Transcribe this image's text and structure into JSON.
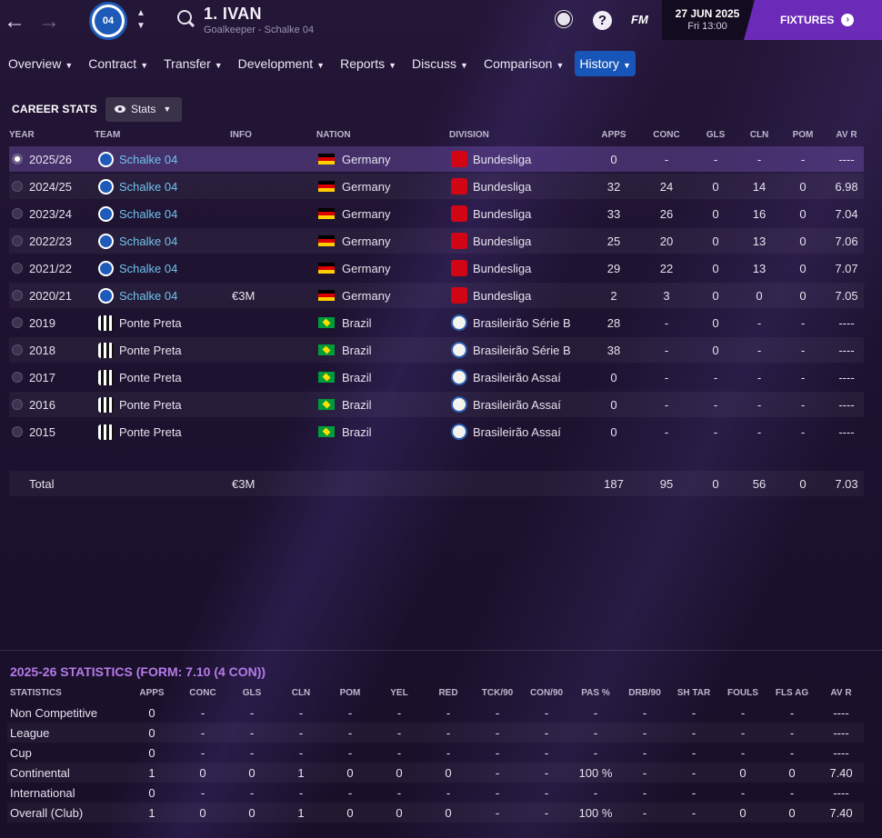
{
  "topbar": {
    "back_icon": "back-arrow-icon",
    "forward_icon": "forward-arrow-icon",
    "club_badge_text": "04",
    "player_name": "1. IVAN",
    "player_subtitle": "Goalkeeper - Schalke 04",
    "date": "27 JUN 2025",
    "day_time": "Fri 13:00",
    "fm_label": "FM",
    "help_label": "?",
    "fixtures_label": "FIXTURES"
  },
  "menu": [
    {
      "label": "Overview"
    },
    {
      "label": "Contract"
    },
    {
      "label": "Transfer"
    },
    {
      "label": "Development"
    },
    {
      "label": "Reports"
    },
    {
      "label": "Discuss"
    },
    {
      "label": "Comparison"
    },
    {
      "label": "History",
      "active": true
    }
  ],
  "career": {
    "title": "CAREER STATS",
    "view_button": "Stats",
    "headers": {
      "year": "YEAR",
      "team": "TEAM",
      "info": "INFO",
      "nation": "NATION",
      "division": "DIVISION",
      "apps": "APPS",
      "conc": "CONC",
      "gls": "GLS",
      "cln": "CLN",
      "pom": "POM",
      "avr": "AV R"
    },
    "rows": [
      {
        "year": "2025/26",
        "team": "Schalke 04",
        "club": "schalke",
        "info": "",
        "nation": "Germany",
        "flag": "de",
        "division": "Bundesliga",
        "div": "bundesliga",
        "apps": "0",
        "conc": "-",
        "gls": "-",
        "cln": "-",
        "pom": "-",
        "avr": "----"
      },
      {
        "year": "2024/25",
        "team": "Schalke 04",
        "club": "schalke",
        "info": "",
        "nation": "Germany",
        "flag": "de",
        "division": "Bundesliga",
        "div": "bundesliga",
        "apps": "32",
        "conc": "24",
        "gls": "0",
        "cln": "14",
        "pom": "0",
        "avr": "6.98"
      },
      {
        "year": "2023/24",
        "team": "Schalke 04",
        "club": "schalke",
        "info": "",
        "nation": "Germany",
        "flag": "de",
        "division": "Bundesliga",
        "div": "bundesliga",
        "apps": "33",
        "conc": "26",
        "gls": "0",
        "cln": "16",
        "pom": "0",
        "avr": "7.04"
      },
      {
        "year": "2022/23",
        "team": "Schalke 04",
        "club": "schalke",
        "info": "",
        "nation": "Germany",
        "flag": "de",
        "division": "Bundesliga",
        "div": "bundesliga",
        "apps": "25",
        "conc": "20",
        "gls": "0",
        "cln": "13",
        "pom": "0",
        "avr": "7.06"
      },
      {
        "year": "2021/22",
        "team": "Schalke 04",
        "club": "schalke",
        "info": "",
        "nation": "Germany",
        "flag": "de",
        "division": "Bundesliga",
        "div": "bundesliga",
        "apps": "29",
        "conc": "22",
        "gls": "0",
        "cln": "13",
        "pom": "0",
        "avr": "7.07"
      },
      {
        "year": "2020/21",
        "team": "Schalke 04",
        "club": "schalke",
        "info": "€3M",
        "nation": "Germany",
        "flag": "de",
        "division": "Bundesliga",
        "div": "bundesliga",
        "apps": "2",
        "conc": "3",
        "gls": "0",
        "cln": "0",
        "pom": "0",
        "avr": "7.05"
      },
      {
        "year": "2019",
        "team": "Ponte Preta",
        "club": "ponte",
        "info": "",
        "nation": "Brazil",
        "flag": "br",
        "division": "Brasileirão Série B",
        "div": "brasileirao",
        "apps": "28",
        "conc": "-",
        "gls": "0",
        "cln": "-",
        "pom": "-",
        "avr": "----"
      },
      {
        "year": "2018",
        "team": "Ponte Preta",
        "club": "ponte",
        "info": "",
        "nation": "Brazil",
        "flag": "br",
        "division": "Brasileirão Série B",
        "div": "brasileirao",
        "apps": "38",
        "conc": "-",
        "gls": "0",
        "cln": "-",
        "pom": "-",
        "avr": "----"
      },
      {
        "year": "2017",
        "team": "Ponte Preta",
        "club": "ponte",
        "info": "",
        "nation": "Brazil",
        "flag": "br",
        "division": "Brasileirão Assaí",
        "div": "brasileirao",
        "apps": "0",
        "conc": "-",
        "gls": "-",
        "cln": "-",
        "pom": "-",
        "avr": "----"
      },
      {
        "year": "2016",
        "team": "Ponte Preta",
        "club": "ponte",
        "info": "",
        "nation": "Brazil",
        "flag": "br",
        "division": "Brasileirão Assaí",
        "div": "brasileirao",
        "apps": "0",
        "conc": "-",
        "gls": "-",
        "cln": "-",
        "pom": "-",
        "avr": "----"
      },
      {
        "year": "2015",
        "team": "Ponte Preta",
        "club": "ponte",
        "info": "",
        "nation": "Brazil",
        "flag": "br",
        "division": "Brasileirão Assaí",
        "div": "brasileirao",
        "apps": "0",
        "conc": "-",
        "gls": "-",
        "cln": "-",
        "pom": "-",
        "avr": "----"
      }
    ],
    "total": {
      "label": "Total",
      "info": "€3M",
      "apps": "187",
      "conc": "95",
      "gls": "0",
      "cln": "56",
      "pom": "0",
      "avr": "7.03"
    }
  },
  "season_stats": {
    "title": "2025-26 STATISTICS (FORM: 7.10 (4 CON))",
    "headers": [
      "STATISTICS",
      "APPS",
      "CONC",
      "GLS",
      "CLN",
      "POM",
      "YEL",
      "RED",
      "TCK/90",
      "CON/90",
      "PAS %",
      "DRB/90",
      "SH TAR",
      "FOULS",
      "FLS AG",
      "AV R"
    ],
    "rows": [
      [
        "Non Competitive",
        "0",
        "-",
        "-",
        "-",
        "-",
        "-",
        "-",
        "-",
        "-",
        "-",
        "-",
        "-",
        "-",
        "-",
        "----"
      ],
      [
        "League",
        "0",
        "-",
        "-",
        "-",
        "-",
        "-",
        "-",
        "-",
        "-",
        "-",
        "-",
        "-",
        "-",
        "-",
        "----"
      ],
      [
        "Cup",
        "0",
        "-",
        "-",
        "-",
        "-",
        "-",
        "-",
        "-",
        "-",
        "-",
        "-",
        "-",
        "-",
        "-",
        "----"
      ],
      [
        "Continental",
        "1",
        "0",
        "0",
        "1",
        "0",
        "0",
        "0",
        "-",
        "-",
        "100 %",
        "-",
        "-",
        "0",
        "0",
        "7.40"
      ],
      [
        "International",
        "0",
        "-",
        "-",
        "-",
        "-",
        "-",
        "-",
        "-",
        "-",
        "-",
        "-",
        "-",
        "-",
        "-",
        "----"
      ],
      [
        "Overall (Club)",
        "1",
        "0",
        "0",
        "1",
        "0",
        "0",
        "0",
        "-",
        "-",
        "100 %",
        "-",
        "-",
        "0",
        "0",
        "7.40"
      ]
    ]
  }
}
